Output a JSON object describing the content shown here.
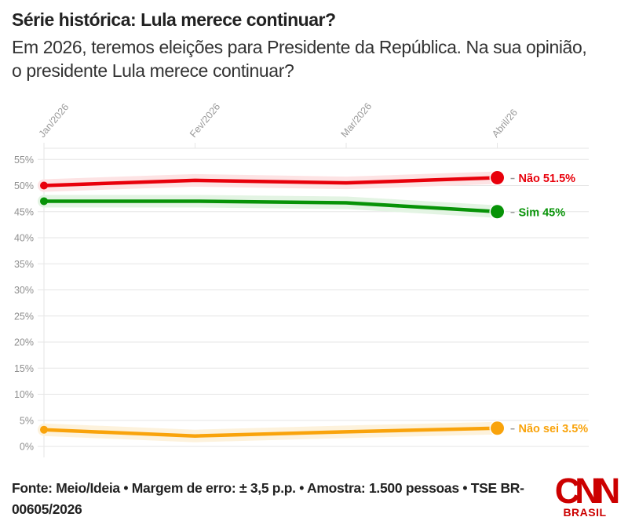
{
  "header": {
    "title": "Série histórica: Lula merece continuar?",
    "subtitle": "Em 2026, teremos eleições para Presidente da República. Na sua opinião, o presidente Lula merece continuar?"
  },
  "footer": {
    "source": "Fonte: Meio/Ideia • Margem de erro: ± 3,5 p.p. • Amostra: 1.500 pessoas • TSE BR-00605/2026"
  },
  "logo": {
    "name": "CNN",
    "sub": "BRASIL",
    "color": "#cc0000"
  },
  "chart_data": {
    "type": "line",
    "title": "Série histórica: Lula merece continuar?",
    "xlabel": "",
    "ylabel": "",
    "categories": [
      "Jan/2026",
      "Fev/2026",
      "Mar/2026",
      "Abril/26"
    ],
    "yticks": [
      "0%",
      "5%",
      "10%",
      "15%",
      "20%",
      "25%",
      "30%",
      "35%",
      "40%",
      "45%",
      "50%",
      "55%"
    ],
    "ylim": [
      0,
      57
    ],
    "grid": true,
    "legend": "end-labels-right",
    "series": [
      {
        "name": "Não",
        "color": "#e8000b",
        "band": "#fde3e4",
        "values": [
          50,
          51,
          50.5,
          51.5
        ],
        "end_label": "Não 51.5%"
      },
      {
        "name": "Sim",
        "color": "#079307",
        "band": "#e3f4e3",
        "values": [
          47,
          47,
          46.7,
          45
        ],
        "end_label": "Sim 45%"
      },
      {
        "name": "Não sei",
        "color": "#f9a30b",
        "band": "#fdf2dc",
        "values": [
          3.2,
          2,
          2.8,
          3.5
        ],
        "end_label": "Não sei 3.5%"
      }
    ]
  }
}
